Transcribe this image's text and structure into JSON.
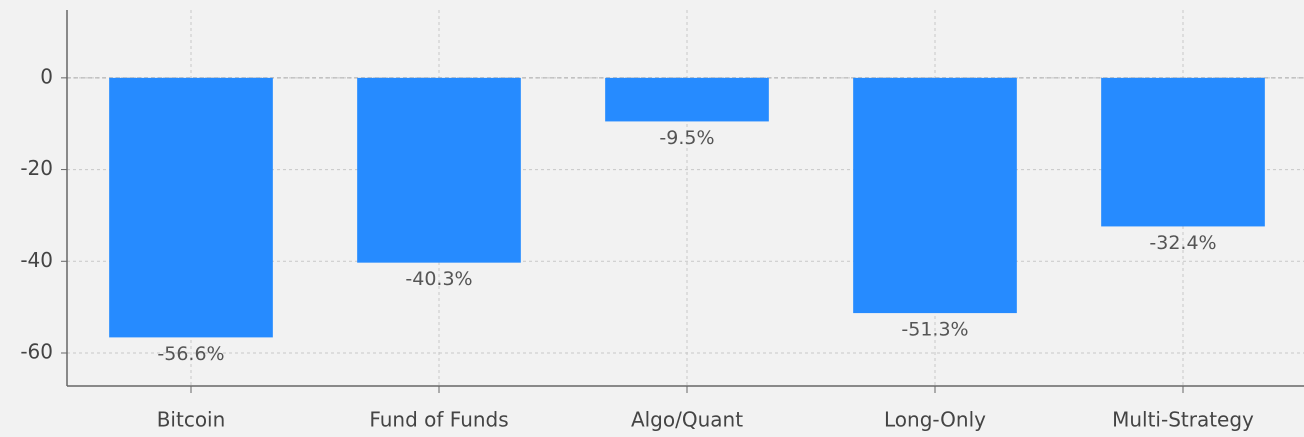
{
  "chart_data": {
    "type": "bar",
    "categories": [
      "Bitcoin",
      "Fund of Funds",
      "Algo/Quant",
      "Long-Only",
      "Multi-Strategy"
    ],
    "values": [
      -56.6,
      -40.3,
      -9.5,
      -51.3,
      -32.4
    ],
    "value_labels": [
      "-56.6%",
      "-40.3%",
      "-9.5%",
      "-51.3%",
      "-32.4%"
    ],
    "color": "#268bff",
    "ylim": [
      -67.2,
      14.8
    ],
    "yticks": [
      0,
      -20,
      -40,
      -60
    ],
    "grid": true
  }
}
